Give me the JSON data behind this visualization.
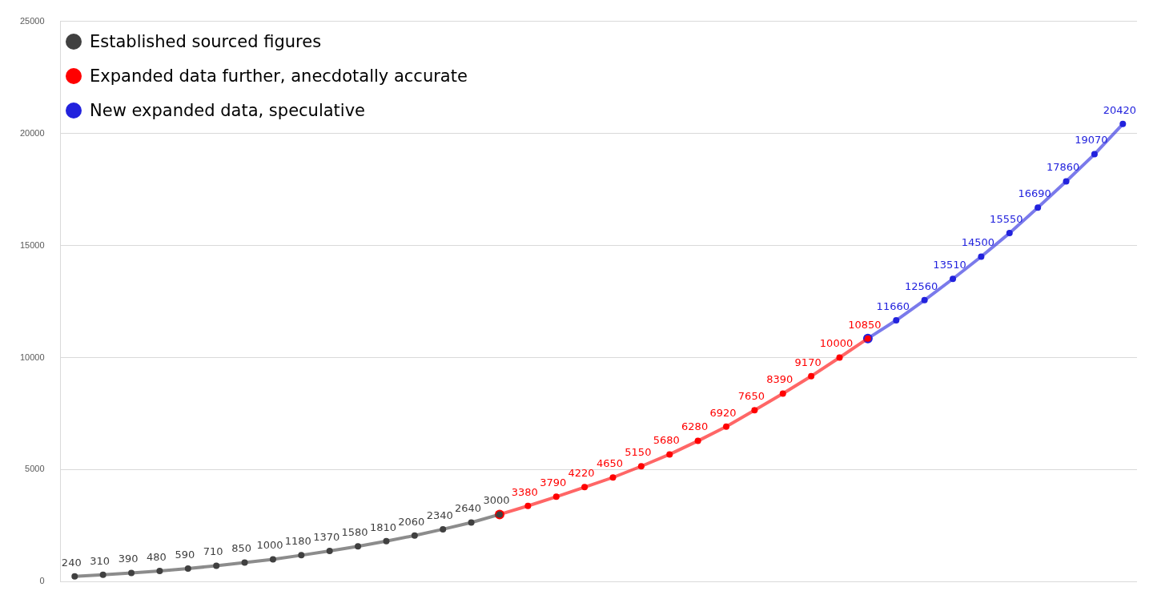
{
  "chart_data": {
    "type": "line",
    "categories": [
      null,
      null,
      null,
      null,
      null,
      null,
      null,
      null,
      null,
      null,
      null,
      null,
      null,
      null,
      null,
      null,
      null,
      null,
      null,
      null,
      null,
      null,
      null,
      null,
      null,
      null,
      null,
      null,
      null,
      null,
      null,
      null,
      null,
      null,
      null,
      null,
      null,
      null
    ],
    "series": [
      {
        "name": "Established sourced figures",
        "color": "#404040",
        "values": [
          240,
          310,
          390,
          480,
          590,
          710,
          850,
          1000,
          1180,
          1370,
          1580,
          1810,
          2060,
          2340,
          2640,
          3000,
          null,
          null,
          null,
          null,
          null,
          null,
          null,
          null,
          null,
          null,
          null,
          null,
          null,
          null,
          null,
          null,
          null,
          null,
          null,
          null,
          null,
          null
        ],
        "value_labels": [
          "240",
          "310",
          "390",
          "480",
          "590",
          "710",
          "850",
          "1000",
          "1180",
          "1370",
          "1580",
          "1810",
          "2060",
          "2340",
          "2640",
          "3000",
          null,
          null,
          null,
          null,
          null,
          null,
          null,
          null,
          null,
          null,
          null,
          null,
          null,
          null,
          null,
          null,
          null,
          null,
          null,
          null,
          null,
          null
        ]
      },
      {
        "name": "Expanded data further, anecdotally accurate",
        "color": "#ff0000",
        "values": [
          null,
          null,
          null,
          null,
          null,
          null,
          null,
          null,
          null,
          null,
          null,
          null,
          null,
          null,
          null,
          3000,
          3380,
          3790,
          4220,
          4650,
          5150,
          5680,
          6280,
          6920,
          7650,
          8390,
          9170,
          10000,
          10850,
          null,
          null,
          null,
          null,
          null,
          null,
          null,
          null,
          null
        ],
        "value_labels": [
          null,
          null,
          null,
          null,
          null,
          null,
          null,
          null,
          null,
          null,
          null,
          null,
          null,
          null,
          null,
          null,
          "3380",
          "3790",
          "4220",
          "4650",
          "5150",
          "5680",
          "6280",
          "6920",
          "7650",
          "8390",
          "9170",
          "10000",
          "10850",
          null,
          null,
          null,
          null,
          null,
          null,
          null,
          null,
          null
        ]
      },
      {
        "name": "New expanded data, speculative",
        "color": "#2222dd",
        "values": [
          null,
          null,
          null,
          null,
          null,
          null,
          null,
          null,
          null,
          null,
          null,
          null,
          null,
          null,
          null,
          null,
          null,
          null,
          null,
          null,
          null,
          null,
          null,
          null,
          null,
          null,
          null,
          null,
          10850,
          11660,
          12560,
          13510,
          14500,
          15550,
          16690,
          17860,
          19070,
          20420
        ],
        "value_labels": [
          null,
          null,
          null,
          null,
          null,
          null,
          null,
          null,
          null,
          null,
          null,
          null,
          null,
          null,
          null,
          null,
          null,
          null,
          null,
          null,
          null,
          null,
          null,
          null,
          null,
          null,
          null,
          null,
          null,
          "11660",
          "12560",
          "13510",
          "14500",
          "15550",
          "16690",
          "17860",
          "19070",
          "20420"
        ]
      }
    ],
    "ylim": [
      0,
      25000
    ],
    "yticks": [
      0,
      5000,
      10000,
      15000,
      20000,
      25000
    ],
    "grid": "y",
    "legend": "top left",
    "marker": "circle",
    "line_style": "solid"
  }
}
